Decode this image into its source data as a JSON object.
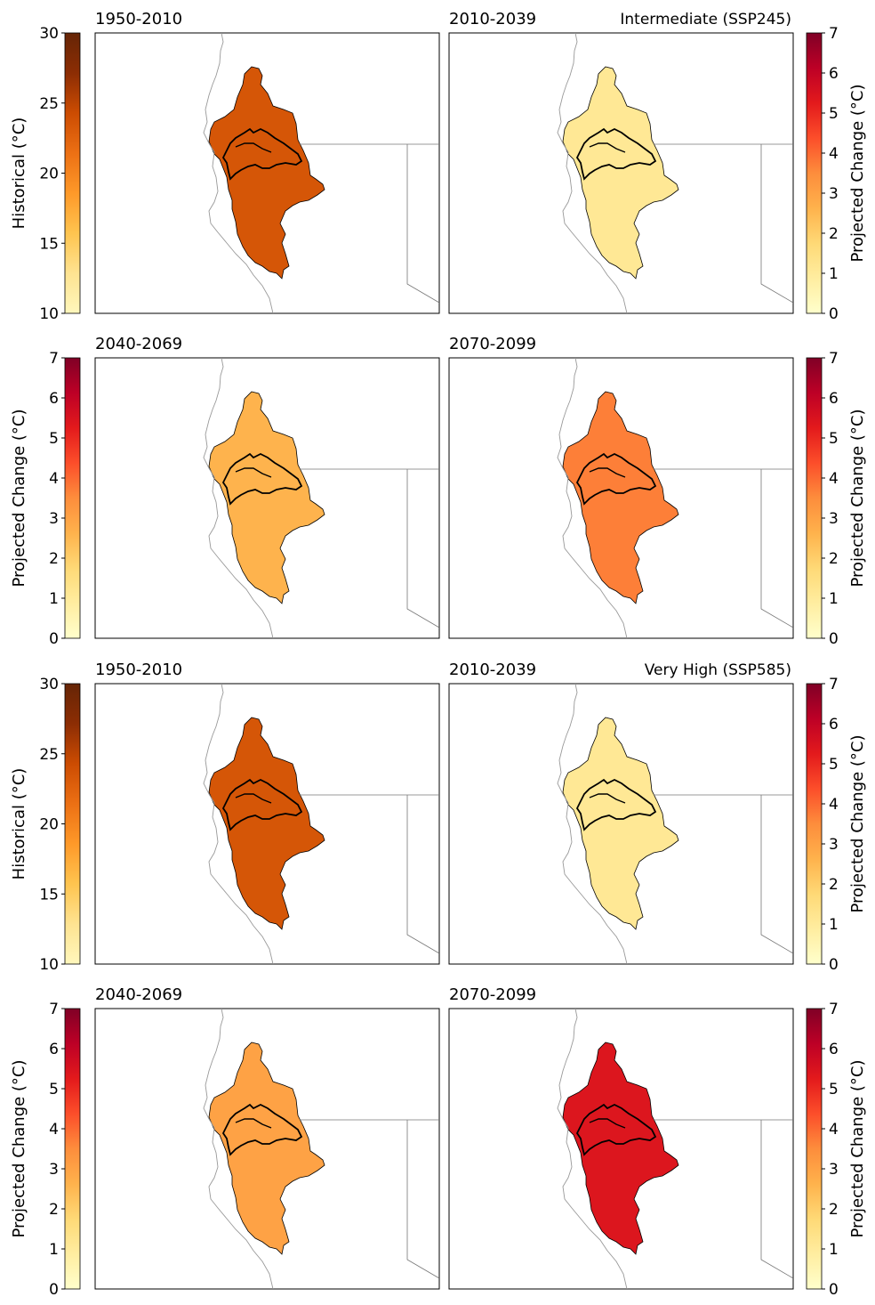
{
  "colors": {
    "historical_ramp": [
      "#fff7bc",
      "#fee391",
      "#fec44f",
      "#fe9929",
      "#ec7014",
      "#cc4c02",
      "#8c2d04",
      "#662506"
    ],
    "change_ramp": [
      "#ffffcc",
      "#ffeda0",
      "#fed976",
      "#feb24c",
      "#fd8d3c",
      "#fc4e2a",
      "#e31a1c",
      "#bd0026",
      "#800026"
    ],
    "coast_line": "#999999",
    "border_line": "#777777",
    "subbasin_line": "#000000"
  },
  "historical_colorbar": {
    "label": "Historical (°C)",
    "range": [
      10,
      30
    ],
    "ticks": [
      "10",
      "15",
      "20",
      "25",
      "30"
    ]
  },
  "change_colorbar": {
    "label": "Projected Change (°C)",
    "range": [
      0,
      7
    ],
    "ticks": [
      "0",
      "1",
      "2",
      "3",
      "4",
      "5",
      "6",
      "7"
    ]
  },
  "panels": [
    {
      "title": "1950-2010",
      "scenario": "",
      "kind": "historical",
      "value": 23.5
    },
    {
      "title": "2010-2039",
      "scenario": "Intermediate (SSP245)",
      "kind": "change",
      "value": 1.1
    },
    {
      "title": "2040-2069",
      "scenario": "",
      "kind": "change",
      "value": 2.6
    },
    {
      "title": "2070-2099",
      "scenario": "",
      "kind": "change",
      "value": 3.7
    },
    {
      "title": "1950-2010",
      "scenario": "",
      "kind": "historical",
      "value": 23.5
    },
    {
      "title": "2010-2039",
      "scenario": "Very High (SSP585)",
      "kind": "change",
      "value": 1.1
    },
    {
      "title": "2040-2069",
      "scenario": "",
      "kind": "change",
      "value": 3.0
    },
    {
      "title": "2070-2099",
      "scenario": "",
      "kind": "change",
      "value": 5.4
    }
  ]
}
